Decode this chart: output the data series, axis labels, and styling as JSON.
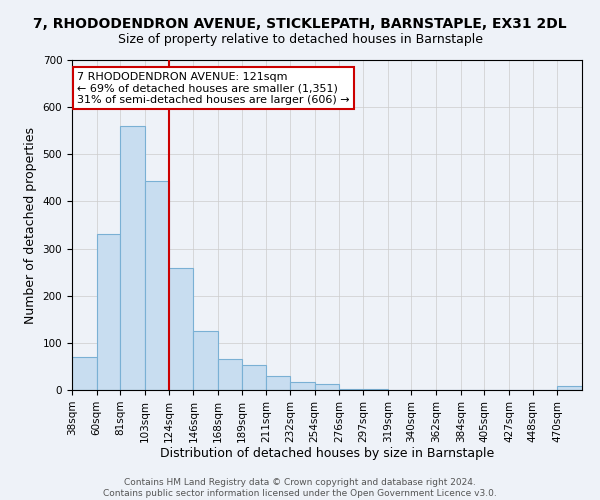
{
  "title": "7, RHODODENDRON AVENUE, STICKLEPATH, BARNSTAPLE, EX31 2DL",
  "subtitle": "Size of property relative to detached houses in Barnstaple",
  "xlabel": "Distribution of detached houses by size in Barnstaple",
  "ylabel": "Number of detached properties",
  "bar_color": "#c8ddf0",
  "bar_edge_color": "#7ab0d4",
  "vline_color": "#cc0000",
  "categories": [
    "38sqm",
    "60sqm",
    "81sqm",
    "103sqm",
    "124sqm",
    "146sqm",
    "168sqm",
    "189sqm",
    "211sqm",
    "232sqm",
    "254sqm",
    "276sqm",
    "297sqm",
    "319sqm",
    "340sqm",
    "362sqm",
    "384sqm",
    "405sqm",
    "427sqm",
    "448sqm",
    "470sqm"
  ],
  "bin_edges": [
    38,
    60,
    81,
    103,
    124,
    146,
    168,
    189,
    211,
    232,
    254,
    276,
    297,
    319,
    340,
    362,
    384,
    405,
    427,
    448,
    470
  ],
  "values": [
    70,
    330,
    560,
    443,
    258,
    125,
    65,
    52,
    30,
    16,
    13,
    3,
    2,
    1,
    0,
    0,
    0,
    0,
    0,
    0,
    8
  ],
  "ylim": [
    0,
    700
  ],
  "yticks": [
    0,
    100,
    200,
    300,
    400,
    500,
    600,
    700
  ],
  "annotation_line1": "7 RHODODENDRON AVENUE: 121sqm",
  "annotation_line2": "← 69% of detached houses are smaller (1,351)",
  "annotation_line3": "31% of semi-detached houses are larger (606) →",
  "annotation_box_color": "#cc0000",
  "footer_text": "Contains HM Land Registry data © Crown copyright and database right 2024.\nContains public sector information licensed under the Open Government Licence v3.0.",
  "bg_color": "#eef2f8",
  "plot_bg_color": "#eef2f8",
  "title_fontsize": 10,
  "subtitle_fontsize": 9,
  "axis_label_fontsize": 9,
  "tick_fontsize": 7.5,
  "footer_fontsize": 6.5
}
